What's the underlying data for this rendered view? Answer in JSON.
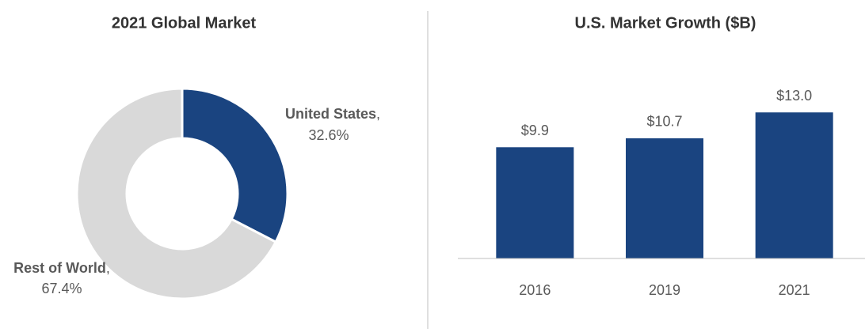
{
  "chart_data": [
    {
      "type": "donut",
      "title": "2021 Global Market",
      "categories": [
        "United States",
        "Rest of World"
      ],
      "values": [
        32.6,
        67.4
      ],
      "value_labels": [
        "32.6%",
        "67.4%"
      ],
      "separator": ",",
      "colors": [
        "#1a4480",
        "#d9d9d9"
      ]
    },
    {
      "type": "bar",
      "title": "U.S. Market Growth ($B)",
      "categories": [
        "2016",
        "2019",
        "2021"
      ],
      "values": [
        9.9,
        10.7,
        13.0
      ],
      "value_labels": [
        "$9.9",
        "$10.7",
        "$13.0"
      ],
      "color": "#1a4480",
      "ylim": [
        0,
        14
      ],
      "grid": false
    }
  ]
}
